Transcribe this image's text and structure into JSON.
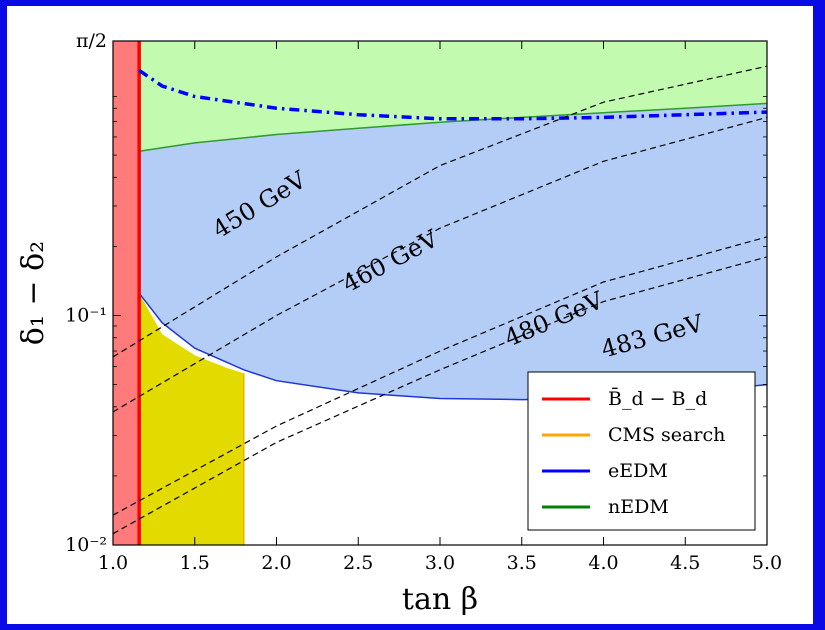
{
  "chart_data": {
    "type": "area",
    "xlabel": "tan β",
    "ylabel": "δ₁ − δ₂",
    "xlim": [
      1.0,
      5.0
    ],
    "ylim": [
      0.01,
      1.5708
    ],
    "yscale": "log",
    "x_ticks": [
      "1.0",
      "1.5",
      "2.0",
      "2.5",
      "3.0",
      "3.5",
      "4.0",
      "4.5",
      "5.0"
    ],
    "y_ticks": [
      {
        "value": 0.01,
        "label": "10⁻²"
      },
      {
        "value": 0.1,
        "label": "10⁻¹"
      },
      {
        "value": 1.5708,
        "label": "π/2"
      }
    ],
    "regions": {
      "bd_excluded_x_max": 1.16,
      "cms_search": {
        "x": [
          1.16,
          1.8
        ],
        "y_upper": [
          [
            1.16,
            0.125
          ],
          [
            1.3,
            0.083
          ],
          [
            1.5,
            0.067
          ],
          [
            1.7,
            0.059
          ],
          [
            1.8,
            0.056
          ]
        ]
      },
      "nedm_boundary": [
        [
          1.16,
          0.52
        ],
        [
          1.5,
          0.565
        ],
        [
          2.0,
          0.615
        ],
        [
          2.5,
          0.655
        ],
        [
          3.0,
          0.695
        ],
        [
          3.5,
          0.73
        ],
        [
          4.0,
          0.765
        ],
        [
          4.5,
          0.8
        ],
        [
          5.0,
          0.84
        ]
      ],
      "eedm_lower": [
        [
          1.16,
          0.125
        ],
        [
          1.3,
          0.093
        ],
        [
          1.5,
          0.072
        ],
        [
          1.8,
          0.058
        ],
        [
          2.0,
          0.052
        ],
        [
          2.5,
          0.046
        ],
        [
          3.0,
          0.0435
        ],
        [
          3.5,
          0.043
        ],
        [
          4.0,
          0.0435
        ],
        [
          4.5,
          0.046
        ],
        [
          5.0,
          0.05
        ]
      ],
      "eedm_upper_dashdot": [
        [
          1.16,
          1.17
        ],
        [
          1.3,
          1.0
        ],
        [
          1.5,
          0.9
        ],
        [
          2.0,
          0.8
        ],
        [
          2.5,
          0.75
        ],
        [
          3.0,
          0.72
        ],
        [
          3.5,
          0.72
        ],
        [
          4.0,
          0.73
        ],
        [
          4.5,
          0.75
        ],
        [
          5.0,
          0.77
        ]
      ]
    },
    "contours": [
      {
        "label": "450 GeV",
        "points": [
          [
            1.0,
            0.066
          ],
          [
            2.0,
            0.18
          ],
          [
            3.0,
            0.45
          ],
          [
            4.0,
            0.85
          ],
          [
            5.0,
            1.22
          ]
        ]
      },
      {
        "label": "460 GeV",
        "points": [
          [
            1.0,
            0.038
          ],
          [
            2.0,
            0.1
          ],
          [
            3.0,
            0.24
          ],
          [
            4.0,
            0.47
          ],
          [
            5.0,
            0.73
          ]
        ]
      },
      {
        "label": "480 GeV",
        "points": [
          [
            1.0,
            0.0135
          ],
          [
            2.0,
            0.033
          ],
          [
            3.0,
            0.07
          ],
          [
            4.0,
            0.14
          ],
          [
            5.0,
            0.22
          ]
        ]
      },
      {
        "label": "483 GeV",
        "points": [
          [
            1.0,
            0.0112
          ],
          [
            2.0,
            0.028
          ],
          [
            3.0,
            0.058
          ],
          [
            4.0,
            0.115
          ],
          [
            5.0,
            0.18
          ]
        ]
      }
    ],
    "contour_label_positions": [
      {
        "x": 1.9,
        "y": 0.3
      },
      {
        "x": 2.7,
        "y": 0.17
      },
      {
        "x": 3.7,
        "y": 0.095
      },
      {
        "x": 4.3,
        "y": 0.08
      }
    ],
    "legend": {
      "position": "bottom-right",
      "entries": [
        {
          "label": "B̄_d − B_d",
          "color": "#ff0000"
        },
        {
          "label": "CMS search",
          "color": "#ffa500"
        },
        {
          "label": "eEDM",
          "color": "#0000ff"
        },
        {
          "label": "nEDM",
          "color": "#008000"
        }
      ]
    },
    "colors": {
      "bd_fill": "#ff7b7b",
      "bd_line": "#ff0000",
      "cms_fill": "#e3db00",
      "nedm_fill": "#c2fbb0",
      "nedm_line": "#2f9b2f",
      "eedm_fill": "#b4cdf7",
      "eedm_line": "#1f37d8",
      "dashdot": "#0000ff",
      "contour": "#000000"
    }
  }
}
